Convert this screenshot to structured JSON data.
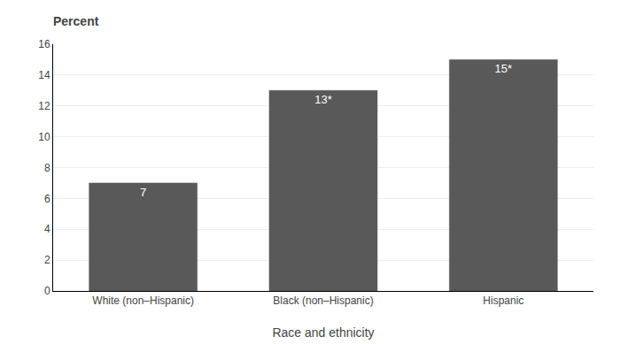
{
  "chart_data": {
    "type": "bar",
    "title": "Percent",
    "xlabel": "Race and ethnicity",
    "categories": [
      "White (non–Hispanic)",
      "Black (non–Hispanic)",
      "Hispanic"
    ],
    "values": [
      7,
      13,
      15
    ],
    "value_labels": [
      "7",
      "13*",
      "15*"
    ],
    "data_labels": true,
    "color": "#595959",
    "ylim": [
      0,
      16
    ],
    "yticks": [
      0,
      2,
      4,
      6,
      8,
      10,
      12,
      14,
      16
    ],
    "grid": true
  }
}
